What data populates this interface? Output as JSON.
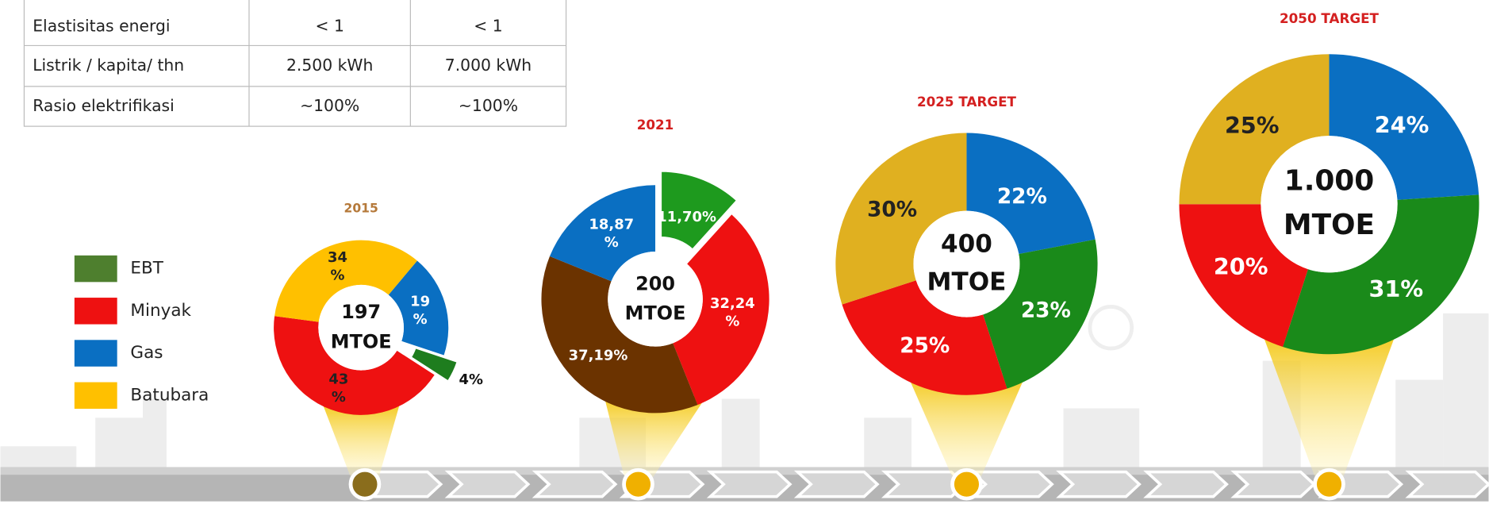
{
  "table": {
    "rows": [
      [
        "Elastisitas energi",
        "< 1",
        "< 1"
      ],
      [
        "Listrik / kapita/ thn",
        "2.500 kWh",
        "7.000 kWh"
      ],
      [
        "Rasio elektrifikasi",
        "~100%",
        "~100%"
      ]
    ]
  },
  "legend": {
    "items": [
      {
        "label": "EBT",
        "color": "#4e7f2e"
      },
      {
        "label": "Minyak",
        "color": "#ee1111"
      },
      {
        "label": "Gas",
        "color": "#0a6fc2"
      },
      {
        "label": "Batubara",
        "color": "#ffc000"
      }
    ]
  },
  "chart_data": [
    {
      "type": "pie",
      "title": "2015",
      "title_color": "#b5793a",
      "values": [
        19,
        4,
        43,
        34
      ],
      "value_labels": [
        "19 %",
        "4%",
        "43 %",
        "34 %"
      ],
      "colors": [
        "#0a6fc2",
        "#1e7d1e",
        "#ee1111",
        "#ffc000"
      ],
      "center_label": "197 MTOE"
    },
    {
      "type": "pie",
      "title": "2021",
      "title_color": "#d42020",
      "values": [
        11.7,
        32.24,
        37.19,
        18.87
      ],
      "value_labels": [
        "11,70%",
        "32,24 %",
        "37,19%",
        "18,87 %"
      ],
      "colors": [
        "#1e9a1e",
        "#ee1111",
        "#6b3300",
        "#0a6fc2"
      ],
      "center_label": "200 MTOE"
    },
    {
      "type": "pie",
      "title": "2025 TARGET",
      "title_color": "#d42020",
      "values": [
        22,
        23,
        25,
        30
      ],
      "value_labels": [
        "22%",
        "23%",
        "25%",
        "30%"
      ],
      "colors": [
        "#0a6fc2",
        "#1a8a1a",
        "#ee1111",
        "#e0b020"
      ],
      "center_label": "400 MTOE"
    },
    {
      "type": "pie",
      "title": "2050 TARGET",
      "title_color": "#d42020",
      "values": [
        24,
        31,
        20,
        25
      ],
      "value_labels": [
        "24%",
        "31%",
        "20%",
        "25%"
      ],
      "colors": [
        "#0a6fc2",
        "#1a8a1a",
        "#ee1111",
        "#e0b020"
      ],
      "center_label": "1.000 MTOE"
    }
  ]
}
